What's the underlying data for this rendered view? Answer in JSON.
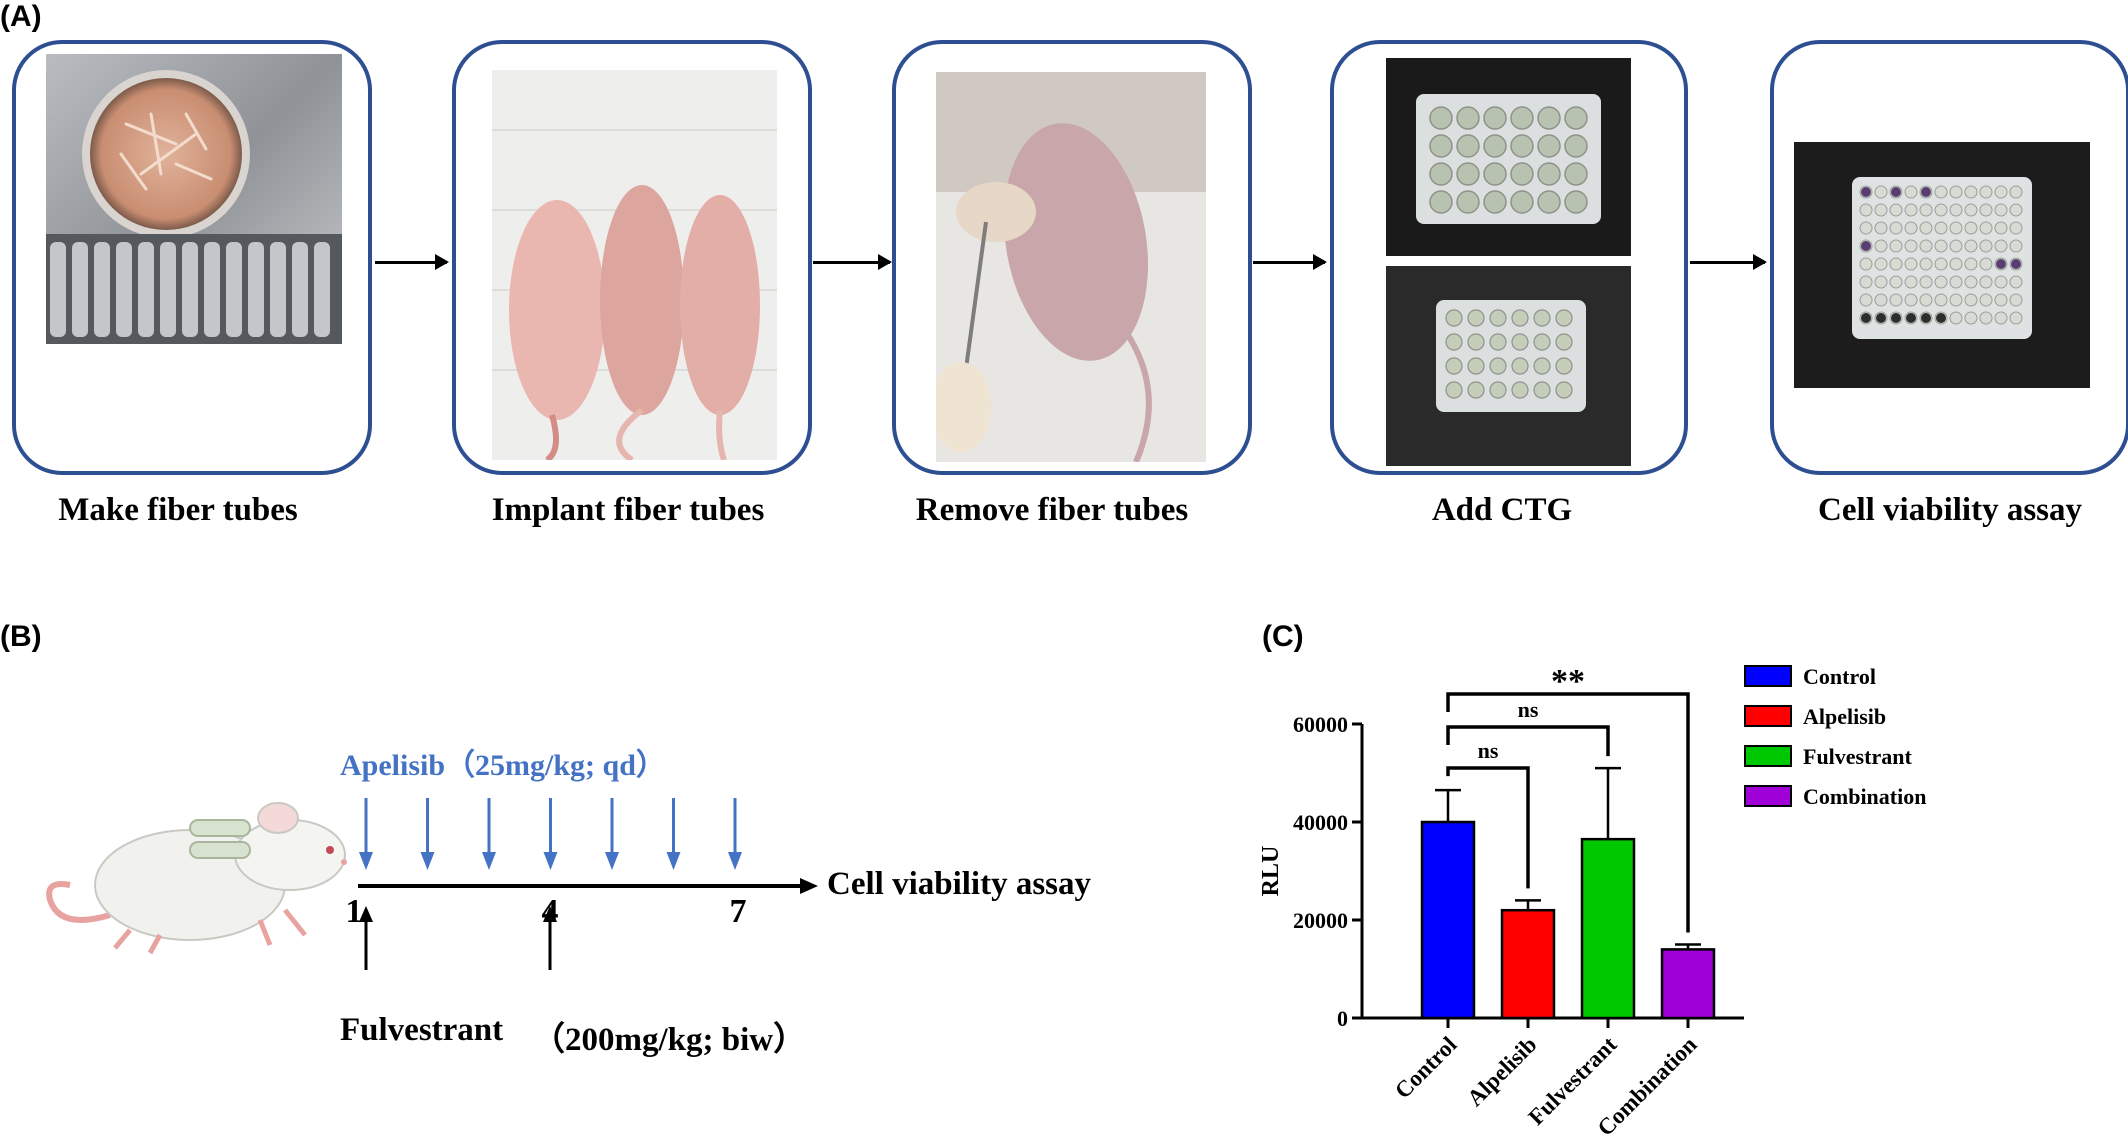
{
  "panel_a": {
    "letter": "(A)",
    "steps": [
      {
        "caption": "Make fiber tubes"
      },
      {
        "caption": "Implant fiber tubes"
      },
      {
        "caption": "Remove fiber tubes"
      },
      {
        "caption": "Add CTG"
      },
      {
        "caption": "Cell viability assay"
      }
    ]
  },
  "panel_b": {
    "letter": "(B)",
    "alpelisib_label": "Apelisib（25mg/kg; qd）",
    "fulvestrant_drug": "Fulvestrant",
    "fulvestrant_dose": "（200mg/kg; biw）",
    "day_labels": [
      "1",
      "4",
      "7"
    ],
    "endpoint_label": "Cell viability assay",
    "alpelisib_color": "#4472c4"
  },
  "panel_c": {
    "letter": "(C)"
  },
  "chart_data": {
    "type": "bar",
    "categories": [
      "Control",
      "Alpelisib",
      "Fulvestrant",
      "Combination"
    ],
    "values": [
      40000,
      22000,
      36500,
      14000
    ],
    "error_upper": [
      46500,
      24000,
      51000,
      15000
    ],
    "colors": [
      "#0000ff",
      "#ff0000",
      "#00c800",
      "#a000d8"
    ],
    "ylabel": "RLU",
    "xlabel": "",
    "ylim": [
      0,
      60000
    ],
    "yticks": [
      0,
      20000,
      40000,
      60000
    ],
    "legend": [
      "Control",
      "Alpelisib",
      "Fulvestrant",
      "Combination"
    ],
    "legend_position": "top-right",
    "significance": [
      {
        "pair": [
          "Control",
          "Alpelisib"
        ],
        "label": "ns"
      },
      {
        "pair": [
          "Control",
          "Fulvestrant"
        ],
        "label": "ns"
      },
      {
        "pair": [
          "Control",
          "Combination"
        ],
        "label": "**"
      }
    ]
  }
}
